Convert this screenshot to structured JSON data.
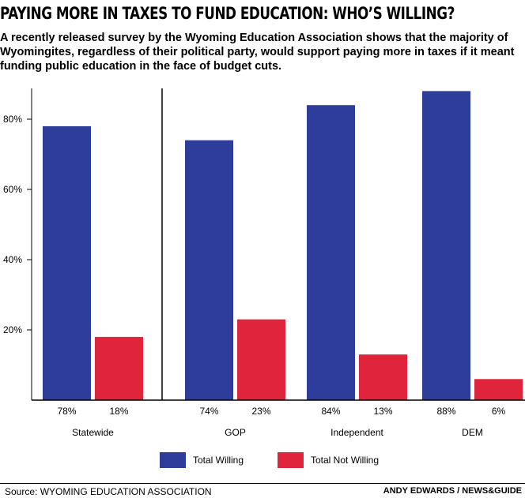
{
  "title": "PAYING MORE IN TAXES TO FUND EDUCATION: WHO’S WILLING?",
  "subtitle": "A recently released survey by the Wyoming Education Association shows that the majority of Wyomingites, regardless of their political party, would support paying more in taxes if it meant funding public education in the face of budget cuts.",
  "chart_data": {
    "type": "bar",
    "categories": [
      "Statewide",
      "GOP",
      "Independent",
      "DEM"
    ],
    "series": [
      {
        "name": "Total Willing",
        "color": "#2e3d99",
        "values": [
          78,
          74,
          84,
          88
        ],
        "labels": [
          "78%",
          "74%",
          "84%",
          "88%"
        ]
      },
      {
        "name": "Total Not Willing",
        "color": "#e0243c",
        "values": [
          18,
          23,
          13,
          6
        ],
        "labels": [
          "18%",
          "23%",
          "13%",
          "6%"
        ]
      }
    ],
    "yticks": [
      20,
      40,
      60,
      80
    ],
    "ytick_labels": [
      "20%",
      "40%",
      "60%",
      "80%"
    ],
    "ylim": [
      0,
      90
    ],
    "legend_position": "bottom"
  },
  "footer": {
    "source": "Source: WYOMING EDUCATION ASSOCIATION",
    "credit": "ANDY EDWARDS / NEWS&GUIDE"
  }
}
